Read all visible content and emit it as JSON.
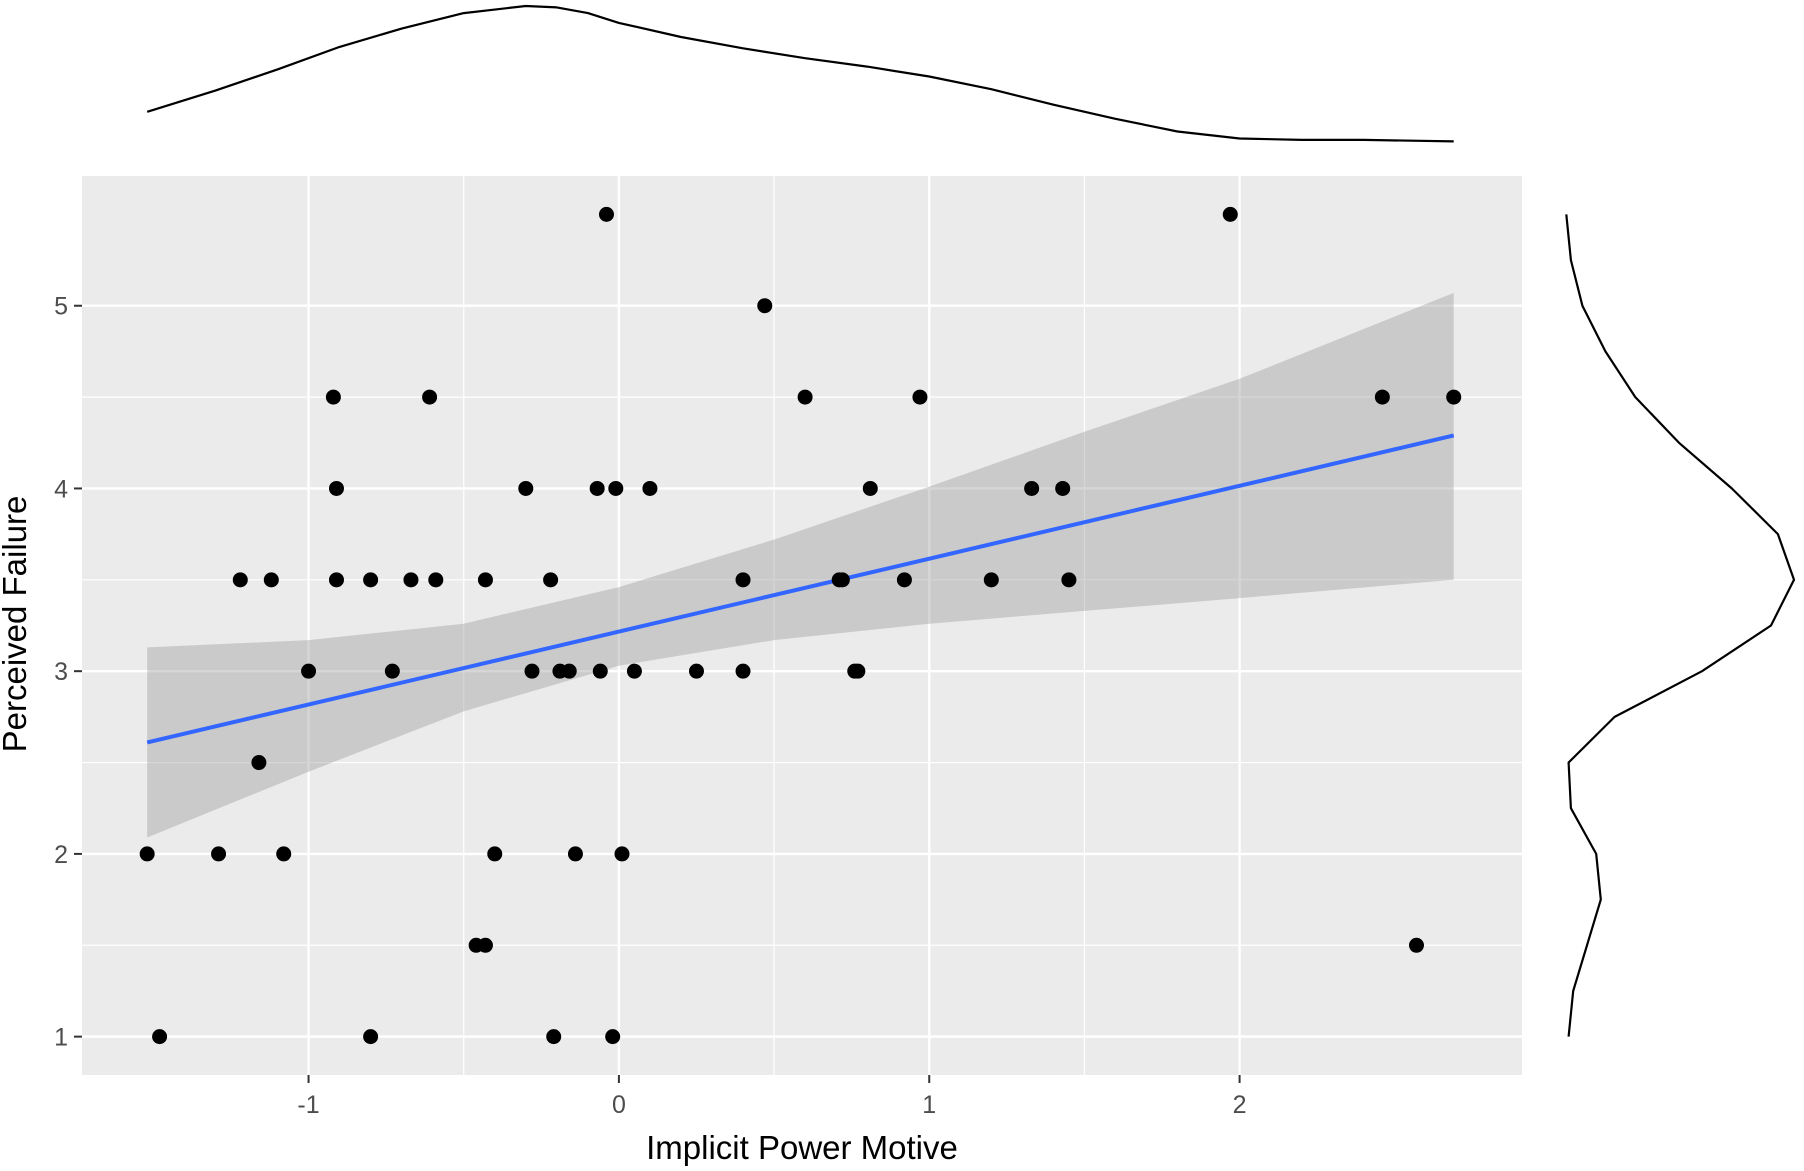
{
  "chart_data": {
    "type": "scatter",
    "title": "",
    "xlabel": "Implicit Power Motive",
    "ylabel": "Perceived Failure",
    "xlim": [
      -1.73,
      2.91
    ],
    "ylim": [
      0.79,
      5.71
    ],
    "x_ticks": [
      -1,
      0,
      1,
      2
    ],
    "x_tick_labels": [
      "-1",
      "0",
      "1",
      "2"
    ],
    "y_ticks": [
      1,
      2,
      3,
      4,
      5
    ],
    "y_tick_labels": [
      "1",
      "2",
      "3",
      "4",
      "5"
    ],
    "grid": true,
    "legend": "none",
    "colors": {
      "panel_background": "#ebebeb",
      "grid_line": "#ffffff",
      "point": "#000000",
      "fit_line": "#3366ff",
      "confidence_band": "#999999",
      "density_line": "#000000"
    },
    "points": [
      {
        "x": -1.52,
        "y": 2.0
      },
      {
        "x": -1.48,
        "y": 1.0
      },
      {
        "x": -1.29,
        "y": 2.0
      },
      {
        "x": -1.22,
        "y": 3.5
      },
      {
        "x": -1.16,
        "y": 2.5
      },
      {
        "x": -1.12,
        "y": 3.5
      },
      {
        "x": -1.08,
        "y": 2.0
      },
      {
        "x": -1.0,
        "y": 3.0
      },
      {
        "x": -0.92,
        "y": 4.5
      },
      {
        "x": -0.91,
        "y": 4.0
      },
      {
        "x": -0.91,
        "y": 3.5
      },
      {
        "x": -0.8,
        "y": 3.5
      },
      {
        "x": -0.8,
        "y": 1.0
      },
      {
        "x": -0.73,
        "y": 3.0
      },
      {
        "x": -0.67,
        "y": 3.5
      },
      {
        "x": -0.61,
        "y": 4.5
      },
      {
        "x": -0.59,
        "y": 3.5
      },
      {
        "x": -0.46,
        "y": 1.5
      },
      {
        "x": -0.43,
        "y": 3.5
      },
      {
        "x": -0.43,
        "y": 1.5
      },
      {
        "x": -0.4,
        "y": 2.0
      },
      {
        "x": -0.3,
        "y": 4.0
      },
      {
        "x": -0.28,
        "y": 3.0
      },
      {
        "x": -0.22,
        "y": 3.5
      },
      {
        "x": -0.21,
        "y": 1.0
      },
      {
        "x": -0.19,
        "y": 3.0
      },
      {
        "x": -0.16,
        "y": 3.0
      },
      {
        "x": -0.14,
        "y": 2.0
      },
      {
        "x": -0.07,
        "y": 4.0
      },
      {
        "x": -0.06,
        "y": 3.0
      },
      {
        "x": -0.04,
        "y": 5.5
      },
      {
        "x": -0.02,
        "y": 1.0
      },
      {
        "x": -0.01,
        "y": 4.0
      },
      {
        "x": 0.01,
        "y": 2.0
      },
      {
        "x": 0.05,
        "y": 3.0
      },
      {
        "x": 0.1,
        "y": 4.0
      },
      {
        "x": 0.25,
        "y": 3.0
      },
      {
        "x": 0.4,
        "y": 3.5
      },
      {
        "x": 0.4,
        "y": 3.0
      },
      {
        "x": 0.47,
        "y": 5.0
      },
      {
        "x": 0.6,
        "y": 4.5
      },
      {
        "x": 0.71,
        "y": 3.5
      },
      {
        "x": 0.72,
        "y": 3.5
      },
      {
        "x": 0.76,
        "y": 3.0
      },
      {
        "x": 0.77,
        "y": 3.0
      },
      {
        "x": 0.81,
        "y": 4.0
      },
      {
        "x": 0.92,
        "y": 3.5
      },
      {
        "x": 0.97,
        "y": 4.5
      },
      {
        "x": 1.2,
        "y": 3.5
      },
      {
        "x": 1.33,
        "y": 4.0
      },
      {
        "x": 1.43,
        "y": 4.0
      },
      {
        "x": 1.45,
        "y": 3.5
      },
      {
        "x": 1.97,
        "y": 5.5
      },
      {
        "x": 2.46,
        "y": 4.5
      },
      {
        "x": 2.57,
        "y": 1.5
      },
      {
        "x": 2.69,
        "y": 4.5
      }
    ],
    "fit_line": {
      "x": [
        -1.52,
        2.69
      ],
      "y": [
        2.61,
        4.29
      ]
    },
    "confidence_band": {
      "x": [
        -1.52,
        -1.0,
        -0.5,
        0.0,
        0.5,
        1.0,
        1.5,
        2.0,
        2.69
      ],
      "lower": [
        2.09,
        2.45,
        2.78,
        3.03,
        3.17,
        3.26,
        3.33,
        3.4,
        3.5
      ],
      "upper": [
        3.13,
        3.17,
        3.26,
        3.46,
        3.72,
        4.01,
        4.31,
        4.6,
        5.07
      ]
    },
    "x_density": {
      "x": [
        -1.52,
        -1.3,
        -1.1,
        -0.9,
        -0.7,
        -0.5,
        -0.3,
        -0.2,
        -0.1,
        0.0,
        0.2,
        0.4,
        0.6,
        0.8,
        1.0,
        1.2,
        1.4,
        1.6,
        1.8,
        2.0,
        2.2,
        2.4,
        2.69
      ],
      "density": [
        0.25,
        0.4,
        0.55,
        0.71,
        0.84,
        0.95,
        1.0,
        0.99,
        0.95,
        0.88,
        0.78,
        0.7,
        0.63,
        0.57,
        0.5,
        0.41,
        0.3,
        0.2,
        0.11,
        0.06,
        0.05,
        0.05,
        0.04
      ]
    },
    "y_density": {
      "y": [
        1.0,
        1.25,
        1.5,
        1.75,
        2.0,
        2.25,
        2.5,
        2.75,
        3.0,
        3.25,
        3.5,
        3.75,
        4.0,
        4.25,
        4.5,
        4.75,
        5.0,
        5.25,
        5.5
      ],
      "density": [
        0.02,
        0.04,
        0.1,
        0.16,
        0.14,
        0.03,
        0.02,
        0.22,
        0.6,
        0.9,
        1.0,
        0.93,
        0.73,
        0.5,
        0.31,
        0.18,
        0.08,
        0.03,
        0.01
      ]
    }
  }
}
